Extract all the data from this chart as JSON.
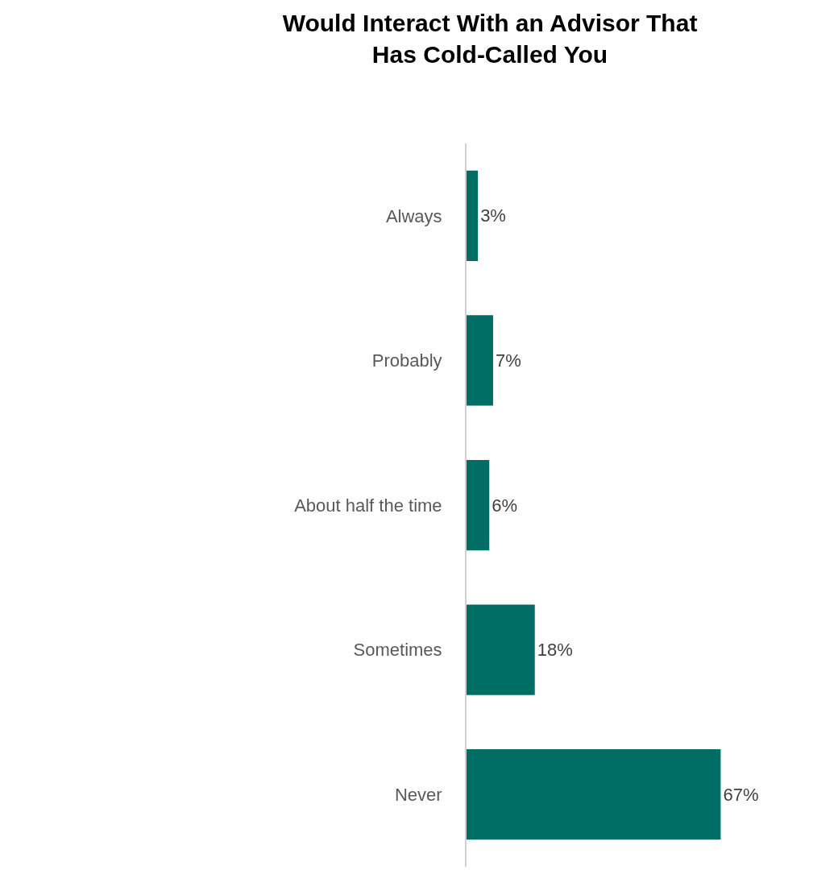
{
  "chart_data": {
    "type": "bar",
    "title": "Would Interact With an Advisor That\nHas Cold-Called You",
    "orientation": "horizontal",
    "categories": [
      "Always",
      "Probably",
      "About half the time",
      "Sometimes",
      "Never"
    ],
    "values": [
      3,
      7,
      6,
      18,
      67
    ],
    "value_labels": [
      "3%",
      "7%",
      "6%",
      "18%",
      "67%"
    ],
    "color": "#006e65",
    "tick_labels": "y"
  }
}
